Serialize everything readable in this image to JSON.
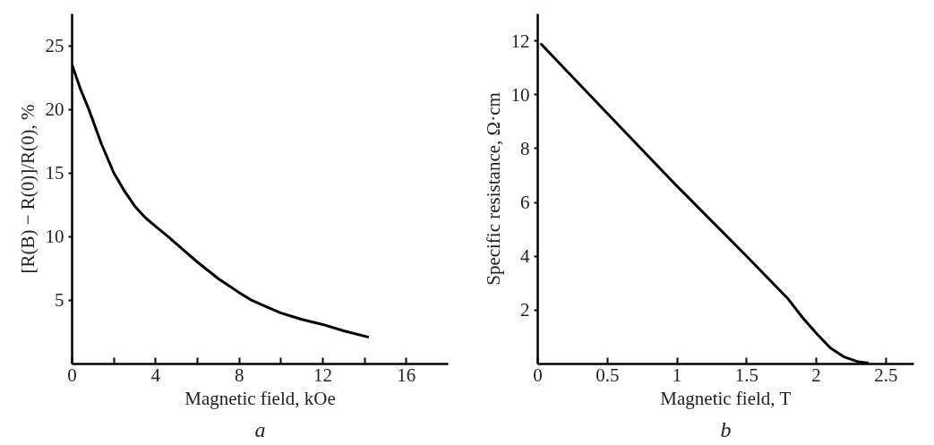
{
  "chart_data": [
    {
      "type": "line",
      "xlabel": "Magnetic field, kOe",
      "ylabel": "[R(B) − R(0)]/R(0), %",
      "annotations": [
        "a"
      ],
      "series": [
        {
          "color": "#000000",
          "x": [
            0,
            0.4,
            0.8,
            1.4,
            2,
            2.5,
            3,
            3.5,
            4,
            4.6,
            5.3,
            6,
            7,
            8,
            8.6,
            9.3,
            10,
            11,
            12,
            13,
            14.2
          ],
          "values": [
            23.5,
            21.6,
            20,
            17.3,
            15,
            13.6,
            12.4,
            11.5,
            10.8,
            10,
            9,
            8,
            6.7,
            5.6,
            5,
            4.5,
            4,
            3.5,
            3.1,
            2.6,
            2.1
          ]
        }
      ],
      "xlim": [
        0,
        18
      ],
      "ylim": [
        0,
        27.5
      ],
      "xticks": [
        0,
        {
          "value": 2,
          "label": null
        },
        4,
        {
          "value": 6,
          "label": null
        },
        8,
        {
          "value": 10,
          "label": null
        },
        12,
        {
          "value": 14,
          "label": null
        },
        16
      ],
      "yticks": [
        5,
        10,
        15,
        20,
        25
      ],
      "grid": false,
      "marker": "none",
      "line_style": "solid"
    },
    {
      "type": "line",
      "xlabel": "Magnetic field, T",
      "ylabel": "Specific resistance, Ω·cm",
      "annotations": [
        "b"
      ],
      "series": [
        {
          "color": "#000000",
          "x": [
            0.02,
            0.5,
            1,
            1.5,
            1.8,
            1.9,
            2,
            2.1,
            2.2,
            2.3,
            2.375
          ],
          "values": [
            11.9,
            9.3,
            6.6,
            4.0,
            2.4,
            1.73,
            1.14,
            0.6,
            0.26,
            0.08,
            0.03
          ]
        }
      ],
      "xlim": [
        0,
        2.7
      ],
      "ylim": [
        0,
        13
      ],
      "xticks": [
        0,
        0.5,
        1,
        1.5,
        2,
        2.5
      ],
      "yticks": [
        2,
        4,
        6,
        8,
        10,
        12
      ],
      "grid": false,
      "marker": "none",
      "line_style": "solid"
    }
  ]
}
